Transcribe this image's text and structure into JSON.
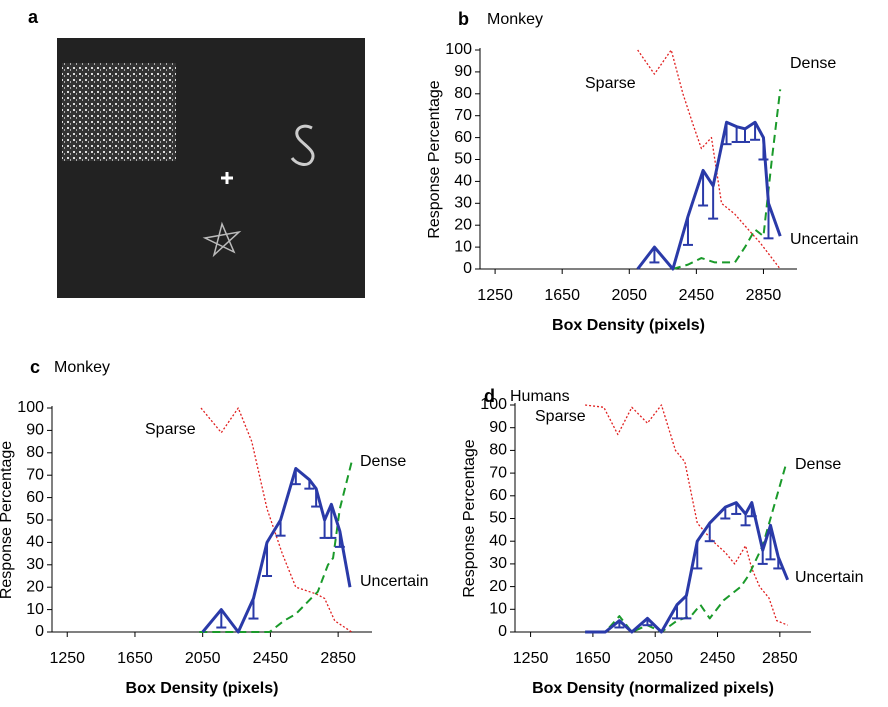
{
  "panel_a": {
    "label": "a"
  },
  "chart_data": [
    {
      "type": "line",
      "label": "b",
      "title": "Monkey",
      "xlabel": "Box Density (pixels)",
      "ylabel": "Response Percentage",
      "xlim": [
        1160,
        3050
      ],
      "ylim": [
        0,
        100
      ],
      "xticks": [
        1250,
        1650,
        2050,
        2450,
        2850
      ],
      "yticks": [
        0,
        10,
        20,
        30,
        40,
        50,
        60,
        70,
        80,
        90,
        100
      ],
      "series": [
        {
          "name": "Sparse",
          "color": "#e02020",
          "line_style": "dotted",
          "x": [
            2100,
            2200,
            2300,
            2370,
            2430,
            2480,
            2540,
            2600,
            2680,
            2760,
            2830,
            2900,
            2950
          ],
          "values": [
            100,
            89,
            100,
            80,
            66,
            55,
            60,
            30,
            25,
            18,
            12,
            5,
            0
          ]
        },
        {
          "name": "Dense",
          "color": "#1a9a2a",
          "line_style": "dashed",
          "x": [
            2310,
            2400,
            2480,
            2560,
            2620,
            2680,
            2740,
            2800,
            2850,
            2900,
            2950
          ],
          "values": [
            0,
            2,
            5,
            3,
            3,
            3,
            10,
            18,
            15,
            50,
            82
          ]
        },
        {
          "name": "Uncertain",
          "color": "#2a3aa8",
          "line_style": "solid",
          "x": [
            2100,
            2200,
            2310,
            2400,
            2490,
            2550,
            2630,
            2690,
            2740,
            2800,
            2850,
            2880,
            2950
          ],
          "values": [
            0,
            10,
            0,
            24,
            45,
            38,
            67,
            65,
            64,
            67,
            60,
            30,
            15
          ],
          "errors": [
            null,
            7,
            null,
            13,
            16,
            15,
            10,
            7,
            6,
            8,
            10,
            16,
            null
          ]
        }
      ]
    },
    {
      "type": "line",
      "label": "c",
      "title": "Monkey",
      "xlabel": "Box Density (pixels)",
      "ylabel": "Response Percentage",
      "xlim": [
        1160,
        3050
      ],
      "ylim": [
        0,
        100
      ],
      "xticks": [
        1250,
        1650,
        2050,
        2450,
        2850
      ],
      "yticks": [
        0,
        10,
        20,
        30,
        40,
        50,
        60,
        70,
        80,
        90,
        100
      ],
      "series": [
        {
          "name": "Sparse",
          "color": "#e02020",
          "line_style": "dotted",
          "x": [
            2040,
            2160,
            2260,
            2340,
            2430,
            2520,
            2600,
            2720,
            2770,
            2830,
            2930
          ],
          "values": [
            100,
            89,
            100,
            85,
            55,
            35,
            20,
            17,
            15,
            5,
            0
          ]
        },
        {
          "name": "Dense",
          "color": "#1a9a2a",
          "line_style": "dashed",
          "x": [
            2030,
            2160,
            2260,
            2340,
            2445,
            2530,
            2600,
            2690,
            2730,
            2790,
            2820,
            2860,
            2930
          ],
          "values": [
            0,
            0,
            0,
            0,
            0,
            5,
            8,
            15,
            18,
            30,
            33,
            55,
            76
          ]
        },
        {
          "name": "Uncertain",
          "color": "#2a3aa8",
          "line_style": "solid",
          "x": [
            2050,
            2160,
            2260,
            2350,
            2430,
            2510,
            2600,
            2680,
            2720,
            2770,
            2810,
            2860,
            2920
          ],
          "values": [
            0,
            10,
            0,
            15,
            40,
            50,
            73,
            68,
            64,
            50,
            57,
            45,
            20
          ],
          "errors": [
            null,
            8,
            null,
            9,
            15,
            7,
            7,
            4,
            8,
            8,
            15,
            7,
            null
          ]
        }
      ]
    },
    {
      "type": "line",
      "label": "d",
      "title": "Humans",
      "xlabel": "Box Density (normalized pixels)",
      "ylabel": "Response Percentage",
      "xlim": [
        1150,
        3050
      ],
      "ylim": [
        0,
        100
      ],
      "xticks": [
        1250,
        1650,
        2050,
        2450,
        2850
      ],
      "yticks": [
        0,
        10,
        20,
        30,
        40,
        50,
        60,
        70,
        80,
        90,
        100
      ],
      "series": [
        {
          "name": "Sparse",
          "color": "#e02020",
          "line_style": "dotted",
          "x": [
            1600,
            1720,
            1810,
            1900,
            2000,
            2090,
            2180,
            2240,
            2320,
            2420,
            2500,
            2560,
            2630,
            2670,
            2720,
            2780,
            2830,
            2900
          ],
          "values": [
            100,
            99,
            87,
            99,
            92,
            100,
            80,
            75,
            48,
            40,
            35,
            30,
            38,
            28,
            20,
            15,
            5,
            3
          ]
        },
        {
          "name": "Dense",
          "color": "#1a9a2a",
          "line_style": "dashed",
          "x": [
            1600,
            1730,
            1820,
            1900,
            2000,
            2090,
            2190,
            2280,
            2340,
            2400,
            2490,
            2600,
            2650,
            2740,
            2790,
            2890
          ],
          "values": [
            0,
            0,
            7,
            0,
            3,
            0,
            5,
            7,
            12,
            6,
            14,
            20,
            25,
            38,
            50,
            74
          ]
        },
        {
          "name": "Uncertain",
          "color": "#2a3aa8",
          "line_style": "solid",
          "x": [
            1600,
            1730,
            1820,
            1900,
            2000,
            2090,
            2190,
            2250,
            2320,
            2400,
            2500,
            2570,
            2630,
            2670,
            2740,
            2790,
            2840,
            2900
          ],
          "values": [
            0,
            0,
            5,
            0,
            6,
            0,
            12,
            16,
            40,
            48,
            55,
            57,
            52,
            57,
            36,
            47,
            33,
            23
          ],
          "errors": [
            null,
            null,
            3,
            null,
            3,
            null,
            6,
            10,
            12,
            8,
            5,
            5,
            5,
            6,
            6,
            15,
            5,
            null
          ]
        }
      ]
    }
  ]
}
